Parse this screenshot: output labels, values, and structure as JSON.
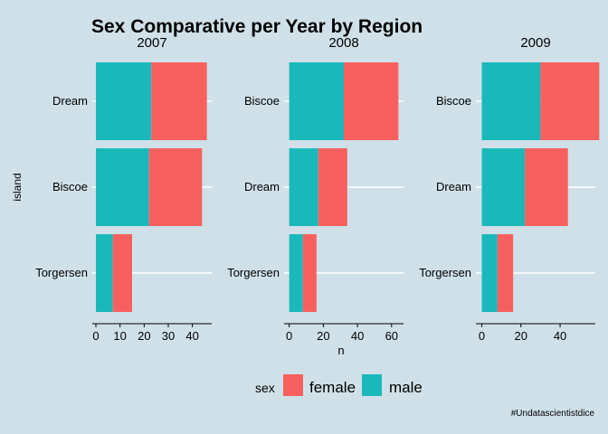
{
  "chart_data": {
    "type": "bar",
    "orientation": "horizontal",
    "stacked": true,
    "title": "Sex Comparative per Year by Region",
    "xlabel": "n",
    "ylabel": "island",
    "grid": true,
    "legend": {
      "title": "sex",
      "position": "bottom",
      "entries": [
        "female",
        "male"
      ]
    },
    "colors": {
      "female": "#f8605f",
      "male": "#1ab8bb"
    },
    "caption": "#Undatascientistdice",
    "panels": [
      {
        "facet": "2007",
        "categories": [
          "Dream",
          "Biscoe",
          "Torgersen"
        ],
        "series": [
          {
            "name": "male",
            "values": [
              23,
              22,
              7
            ]
          },
          {
            "name": "female",
            "values": [
              23,
              22,
              8
            ]
          }
        ],
        "xticks": [
          0,
          10,
          20,
          30,
          40
        ],
        "xlim": [
          -1.5,
          48
        ]
      },
      {
        "facet": "2008",
        "categories": [
          "Biscoe",
          "Dream",
          "Torgersen"
        ],
        "series": [
          {
            "name": "male",
            "values": [
              32,
              17,
              8
            ]
          },
          {
            "name": "female",
            "values": [
              32,
              17,
              8
            ]
          }
        ],
        "xticks": [
          0,
          20,
          40,
          60
        ],
        "xlim": [
          -3,
          67
        ]
      },
      {
        "facet": "2009",
        "categories": [
          "Biscoe",
          "Dream",
          "Torgersen"
        ],
        "series": [
          {
            "name": "male",
            "values": [
              30,
              22,
              8
            ]
          },
          {
            "name": "female",
            "values": [
              30,
              22,
              8
            ]
          }
        ],
        "xticks": [
          0,
          20,
          40
        ],
        "xlim": [
          -3,
          58
        ]
      }
    ]
  }
}
